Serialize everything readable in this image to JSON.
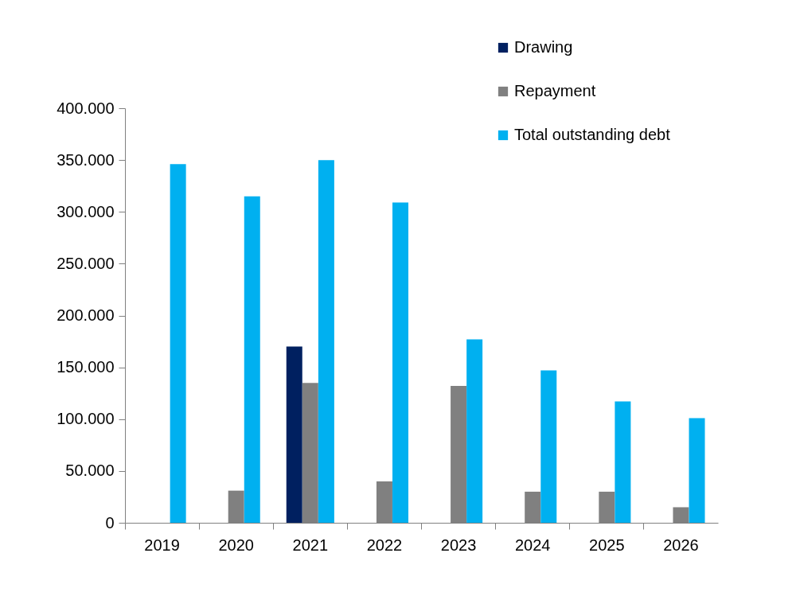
{
  "chart_data": {
    "type": "bar",
    "categories": [
      "2019",
      "2020",
      "2021",
      "2022",
      "2023",
      "2024",
      "2025",
      "2026"
    ],
    "series": [
      {
        "name": "Drawing",
        "color": "#002060",
        "values": [
          null,
          null,
          170000,
          null,
          null,
          null,
          null,
          null
        ]
      },
      {
        "name": "Repayment",
        "color": "#808080",
        "values": [
          null,
          31000,
          135000,
          40000,
          132000,
          30000,
          30000,
          15000
        ]
      },
      {
        "name": "Total outstanding debt",
        "color": "#00b0f0",
        "values": [
          346000,
          315000,
          350000,
          309000,
          177000,
          147000,
          117000,
          101000
        ]
      }
    ],
    "ylim": [
      0,
      400000
    ],
    "yticks": [
      {
        "value": 0,
        "label": "0"
      },
      {
        "value": 50000,
        "label": "50.000"
      },
      {
        "value": 100000,
        "label": "100.000"
      },
      {
        "value": 150000,
        "label": "150.000"
      },
      {
        "value": 200000,
        "label": "200.000"
      },
      {
        "value": 250000,
        "label": "250.000"
      },
      {
        "value": 300000,
        "label": "300.000"
      },
      {
        "value": 350000,
        "label": "350.000"
      },
      {
        "value": 400000,
        "label": "400.000"
      }
    ],
    "grid": false,
    "legend": "top right"
  }
}
